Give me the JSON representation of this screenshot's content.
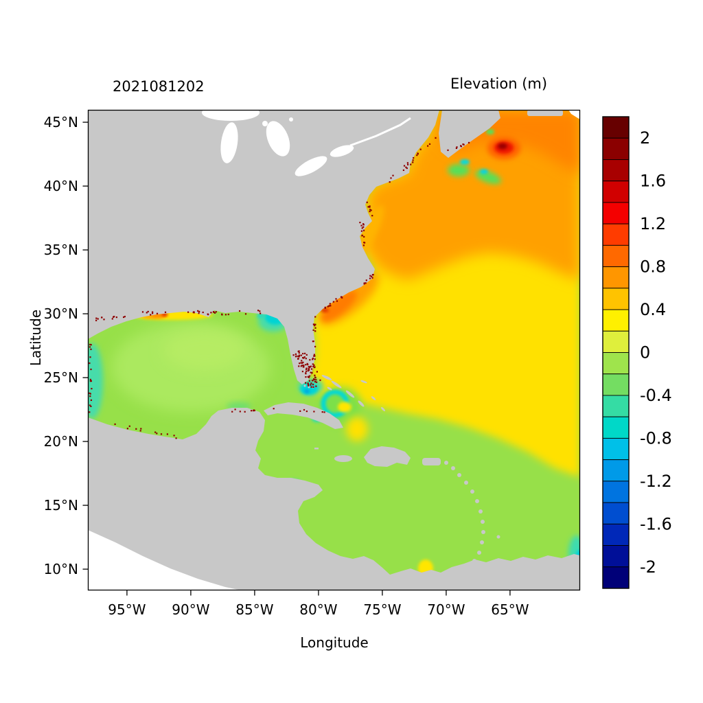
{
  "figure": {
    "timestamp_title": "2021081202",
    "colorbar_title": "Elevation (m)",
    "xlabel": "Longitude",
    "ylabel": "Latitude"
  },
  "axes": {
    "lat_ticks": [
      {
        "label": "45°N",
        "value": 45
      },
      {
        "label": "40°N",
        "value": 40
      },
      {
        "label": "35°N",
        "value": 35
      },
      {
        "label": "30°N",
        "value": 30
      },
      {
        "label": "25°N",
        "value": 25
      },
      {
        "label": "20°N",
        "value": 20
      },
      {
        "label": "15°N",
        "value": 15
      },
      {
        "label": "10°N",
        "value": 10
      }
    ],
    "lon_ticks": [
      {
        "label": "95°W",
        "value": 95
      },
      {
        "label": "90°W",
        "value": 90
      },
      {
        "label": "85°W",
        "value": 85
      },
      {
        "label": "80°W",
        "value": 80
      },
      {
        "label": "75°W",
        "value": 75
      },
      {
        "label": "70°W",
        "value": 70
      },
      {
        "label": "65°W",
        "value": 65
      }
    ]
  },
  "colorbar": {
    "units": "m",
    "range_top_to_bottom": [
      2.2,
      -2.2
    ],
    "labels": [
      {
        "text": "2",
        "value": 2
      },
      {
        "text": "1.6",
        "value": 1.6
      },
      {
        "text": "1.2",
        "value": 1.2
      },
      {
        "text": "0.8",
        "value": 0.8
      },
      {
        "text": "0.4",
        "value": 0.4
      },
      {
        "text": "0",
        "value": 0
      },
      {
        "text": "-0.4",
        "value": -0.4
      },
      {
        "text": "-0.8",
        "value": -0.8
      },
      {
        "text": "-1.2",
        "value": -1.2
      },
      {
        "text": "-1.6",
        "value": -1.6
      },
      {
        "text": "-2",
        "value": -2
      }
    ],
    "colors_top_to_bottom": [
      "#670000",
      "#8b0000",
      "#a80000",
      "#d10000",
      "#f40000",
      "#ff3c00",
      "#ff6900",
      "#ff9600",
      "#ffc300",
      "#fff000",
      "#dfef3c",
      "#9fe44c",
      "#74dd62",
      "#35dca4",
      "#00d8c8",
      "#00c0e8",
      "#009ae8",
      "#0074e0",
      "#004ed0",
      "#0028b8",
      "#000f98",
      "#000078"
    ]
  },
  "palette": {
    "land_gray": "#c8c8c8",
    "outside_domain_white": "#ffffff",
    "ocean_green": "#97e049",
    "atlantic_yellow": "#ffe100",
    "north_atlantic_orange": "#ffa000",
    "hotspot_red": "#ee1500",
    "coastal_dark_red": "#8e0000",
    "negative_cyan": "#00d4d4"
  },
  "chart_data": {
    "type": "heatmap",
    "title": "Elevation (m)",
    "timestamp": "2021081202",
    "xlabel": "Longitude",
    "ylabel": "Latitude",
    "x_ticks": [
      "95°W",
      "90°W",
      "85°W",
      "80°W",
      "75°W",
      "70°W",
      "65°W"
    ],
    "y_ticks": [
      "45°N",
      "40°N",
      "35°N",
      "30°N",
      "25°N",
      "20°N",
      "15°N",
      "10°N"
    ],
    "lon_range_deg_w": [
      98,
      60
    ],
    "lat_range_deg_n": [
      8.5,
      46
    ],
    "colorbar": {
      "label_values": [
        2,
        1.6,
        1.2,
        0.8,
        0.4,
        0,
        -0.4,
        -0.8,
        -1.2,
        -1.6,
        -2
      ],
      "units": "m"
    },
    "legend_position": "right",
    "grid": false,
    "regions": [
      {
        "name": "Open central Atlantic (Sargasso region)",
        "approx_elevation_m": 0.5
      },
      {
        "name": "Northwest Atlantic along US east coast (Gulf Stream)",
        "approx_elevation_m": 0.9
      },
      {
        "name": "Hotspot off Nova Scotia near 43N 64W",
        "approx_elevation_m": 1.8
      },
      {
        "name": "Gulf of Mexico interior",
        "approx_elevation_m": 0.1
      },
      {
        "name": "Caribbean Sea",
        "approx_elevation_m": 0.1
      },
      {
        "name": "Southeast Atlantic lower-right edge",
        "approx_elevation_m": 0.2
      },
      {
        "name": "Bay of Fundy / Nova Scotia coastal patches",
        "approx_elevation_m": -0.6
      },
      {
        "name": "Florida Big Bend coastal patch",
        "approx_elevation_m": -0.6
      },
      {
        "name": "South Florida / Florida Bay cyan patch",
        "approx_elevation_m": -0.5
      },
      {
        "name": "Louisiana shelf band",
        "approx_elevation_m": 0.5
      },
      {
        "name": "Bahamas eddy (cyan ring, yellow core)",
        "approx_elevation_m": -0.5
      },
      {
        "name": "Coastal estuary speckles (dark red)",
        "approx_elevation_m": 2
      }
    ],
    "notes": "Land masked gray; white areas outside model domain (Pacific, Great Lakes)."
  }
}
